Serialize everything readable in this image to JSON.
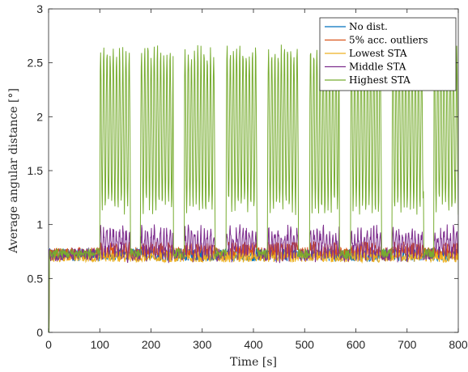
{
  "chart_data": {
    "type": "line",
    "title": "",
    "xlabel": "Time [s]",
    "ylabel": "Average angular distance [°]",
    "xlim": [
      0,
      800
    ],
    "ylim": [
      0,
      3
    ],
    "xticks": [
      "0",
      "100",
      "200",
      "300",
      "400",
      "500",
      "600",
      "700",
      "800"
    ],
    "yticks": [
      "0",
      "0.5",
      "1",
      "1.5",
      "2",
      "2.5",
      "3"
    ],
    "xtick_values": [
      0,
      100,
      200,
      300,
      400,
      500,
      600,
      700,
      800
    ],
    "ytick_values": [
      0,
      0.5,
      1,
      1.5,
      2,
      2.5,
      3
    ],
    "grid": false,
    "legend_position": "top-right",
    "disturbance_intervals": [
      [
        100,
        160
      ],
      [
        180,
        244
      ],
      [
        265,
        325
      ],
      [
        347,
        407
      ],
      [
        428,
        488
      ],
      [
        510,
        568
      ],
      [
        590,
        650
      ],
      [
        671,
        732
      ],
      [
        752,
        800
      ]
    ],
    "series": [
      {
        "name": "No dist.",
        "color": "#0072BD",
        "baseline": 0.72,
        "peak": 0.72
      },
      {
        "name": "5% acc. outliers",
        "color": "#D95319",
        "baseline": 0.73,
        "peak": 0.78
      },
      {
        "name": "Lowest STA",
        "color": "#EDB120",
        "baseline": 0.7,
        "peak": 0.72
      },
      {
        "name": "Middle STA",
        "color": "#7E2F8E",
        "baseline": 0.72,
        "peak": 1.0
      },
      {
        "name": "Highest STA",
        "color": "#77AC30",
        "baseline": 0.73,
        "peak": 2.45
      }
    ]
  }
}
